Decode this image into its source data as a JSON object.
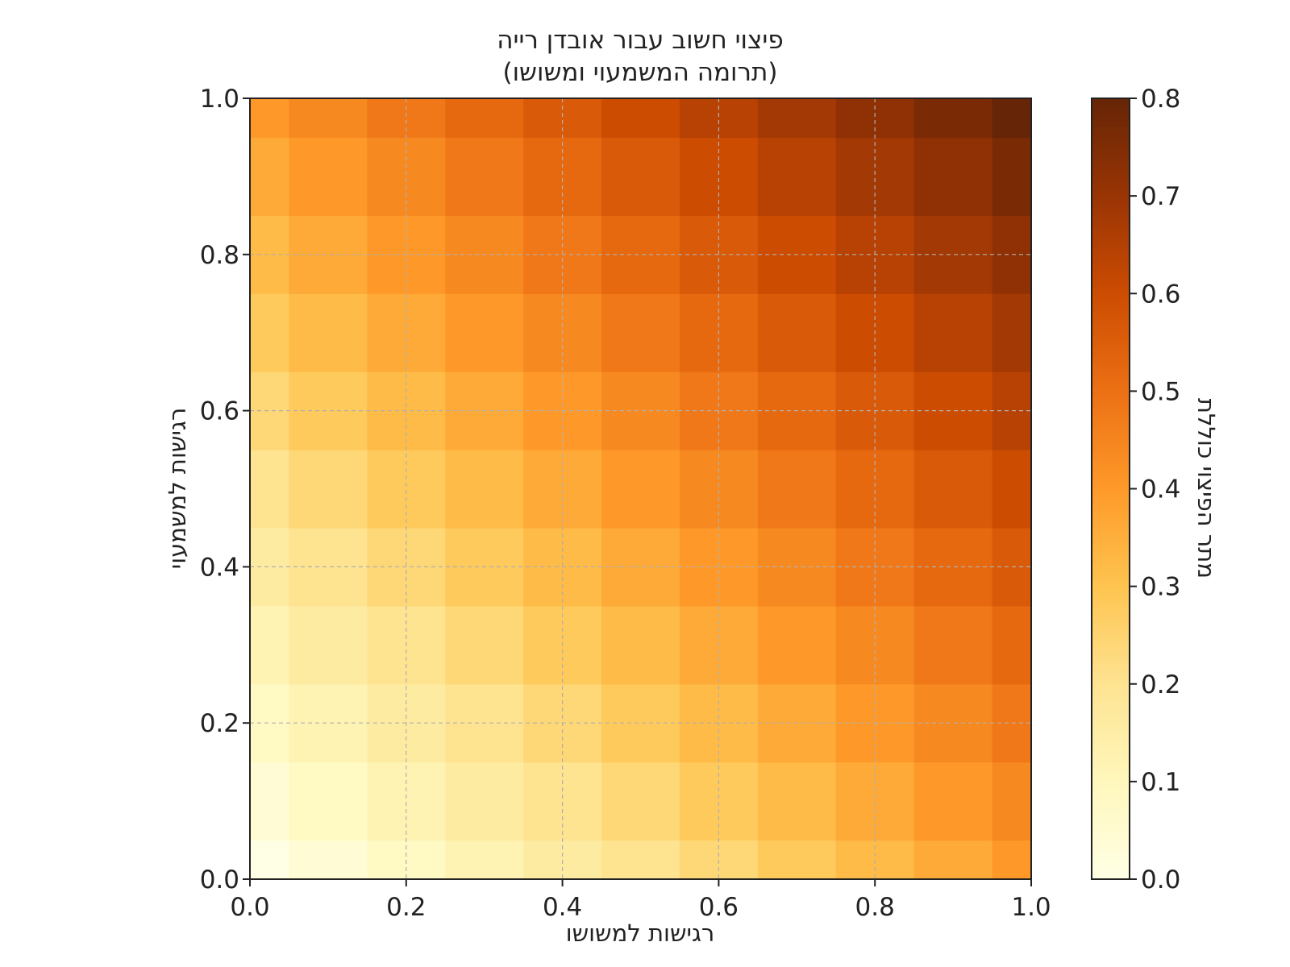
{
  "chart_data": {
    "type": "heatmap",
    "title": "פיצוי חשוב עבור אובדן רייה",
    "subtitle": "(תרומה המשמעוי ומשושו)",
    "xlabel": "רגישות למשושו",
    "ylabel": "רגישות למשמעוי",
    "colorbar_label": "מתר הפיצוי כוללת",
    "xlim": [
      0.0,
      1.0
    ],
    "ylim": [
      0.0,
      1.0
    ],
    "x_ticks": [
      "0.0",
      "0.2",
      "0.4",
      "0.6",
      "0.8",
      "1.0"
    ],
    "y_ticks": [
      "0.0",
      "0.2",
      "0.4",
      "0.6",
      "0.8",
      "1.0"
    ],
    "colorbar_range": [
      0.0,
      0.8
    ],
    "colorbar_ticks": [
      "0.0",
      "0.1",
      "0.2",
      "0.3",
      "0.4",
      "0.5",
      "0.6",
      "0.7",
      "0.8"
    ],
    "colormap": "YlOrBr",
    "colormap_stops": [
      "#ffffe5",
      "#fff7bc",
      "#fee391",
      "#fec44f",
      "#fe9929",
      "#ec7014",
      "#cc4c02",
      "#993404",
      "#662506"
    ],
    "grid": true,
    "x_centers": [
      0.0,
      0.1,
      0.2,
      0.3,
      0.4,
      0.5,
      0.6,
      0.7,
      0.8,
      0.9,
      1.0
    ],
    "y_centers": [
      0.0,
      0.1,
      0.2,
      0.3,
      0.4,
      0.5,
      0.6,
      0.7,
      0.8,
      0.9,
      1.0
    ],
    "z": [
      [
        0.0,
        0.04,
        0.08,
        0.12,
        0.16,
        0.2,
        0.24,
        0.28,
        0.32,
        0.36,
        0.4
      ],
      [
        0.04,
        0.08,
        0.12,
        0.16,
        0.2,
        0.24,
        0.28,
        0.32,
        0.36,
        0.4,
        0.44
      ],
      [
        0.08,
        0.12,
        0.16,
        0.2,
        0.24,
        0.28,
        0.32,
        0.36,
        0.4,
        0.44,
        0.48
      ],
      [
        0.12,
        0.16,
        0.2,
        0.24,
        0.28,
        0.32,
        0.36,
        0.4,
        0.44,
        0.48,
        0.52
      ],
      [
        0.16,
        0.2,
        0.24,
        0.28,
        0.32,
        0.36,
        0.4,
        0.44,
        0.48,
        0.52,
        0.56
      ],
      [
        0.2,
        0.24,
        0.28,
        0.32,
        0.36,
        0.4,
        0.44,
        0.48,
        0.52,
        0.56,
        0.6
      ],
      [
        0.24,
        0.28,
        0.32,
        0.36,
        0.4,
        0.44,
        0.48,
        0.52,
        0.56,
        0.6,
        0.64
      ],
      [
        0.28,
        0.32,
        0.36,
        0.4,
        0.44,
        0.48,
        0.52,
        0.56,
        0.6,
        0.64,
        0.68
      ],
      [
        0.32,
        0.36,
        0.4,
        0.44,
        0.48,
        0.52,
        0.56,
        0.6,
        0.64,
        0.68,
        0.72
      ],
      [
        0.36,
        0.4,
        0.44,
        0.48,
        0.52,
        0.56,
        0.6,
        0.64,
        0.68,
        0.72,
        0.76
      ],
      [
        0.4,
        0.44,
        0.48,
        0.52,
        0.56,
        0.6,
        0.64,
        0.68,
        0.72,
        0.76,
        0.8
      ]
    ]
  }
}
